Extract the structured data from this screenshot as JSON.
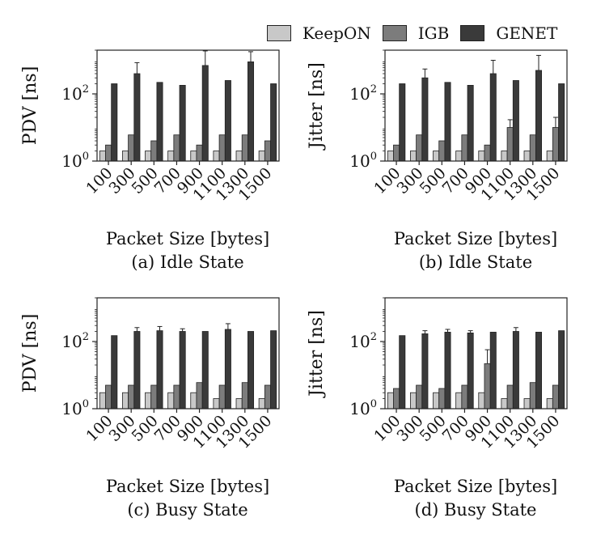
{
  "legend": [
    {
      "name": "KeepON",
      "color": "#c8c8c8"
    },
    {
      "name": "IGB",
      "color": "#7c7c7c"
    },
    {
      "name": "GENET",
      "color": "#3a3a3a"
    }
  ],
  "chart_data": [
    {
      "type": "bar",
      "title": "(a) Idle State",
      "xlabel": "Packet Size [bytes]",
      "ylabel": "PDV [ns]",
      "yscale": "log",
      "ylim": [
        1,
        2000
      ],
      "yticks": [
        "10^0",
        "10^2"
      ],
      "categories": [
        "100",
        "300",
        "500",
        "700",
        "900",
        "1100",
        "1300",
        "1500"
      ],
      "series": [
        {
          "name": "KeepON",
          "values": [
            2,
            2,
            2,
            2,
            2,
            2,
            2,
            2
          ],
          "errors": [
            0,
            0,
            0,
            0,
            0,
            0,
            0,
            0
          ]
        },
        {
          "name": "IGB",
          "values": [
            3,
            6,
            4,
            6,
            3,
            6,
            6,
            4
          ],
          "errors": [
            0,
            0,
            0,
            0,
            0,
            0,
            0,
            0
          ]
        },
        {
          "name": "GENET",
          "values": [
            200,
            400,
            220,
            180,
            700,
            250,
            900,
            200
          ],
          "errors": [
            0,
            450,
            0,
            0,
            1200,
            0,
            900,
            0
          ]
        }
      ]
    },
    {
      "type": "bar",
      "title": "(b) Idle State",
      "xlabel": "Packet Size [bytes]",
      "ylabel": "Jitter [ns]",
      "yscale": "log",
      "ylim": [
        1,
        2000
      ],
      "yticks": [
        "10^0",
        "10^2"
      ],
      "categories": [
        "100",
        "300",
        "500",
        "700",
        "900",
        "1100",
        "1300",
        "1500"
      ],
      "series": [
        {
          "name": "KeepON",
          "values": [
            2,
            2,
            2,
            2,
            2,
            2,
            2,
            2
          ],
          "errors": [
            0,
            0,
            0,
            0,
            0,
            0,
            0,
            0
          ]
        },
        {
          "name": "IGB",
          "values": [
            3,
            6,
            4,
            6,
            3,
            10,
            6,
            10
          ],
          "errors": [
            0,
            0,
            0,
            0,
            0,
            7,
            0,
            10
          ]
        },
        {
          "name": "GENET",
          "values": [
            200,
            300,
            220,
            180,
            400,
            250,
            500,
            200
          ],
          "errors": [
            0,
            250,
            0,
            0,
            600,
            0,
            900,
            0
          ]
        }
      ]
    },
    {
      "type": "bar",
      "title": "(c) Busy State",
      "xlabel": "Packet Size [bytes]",
      "ylabel": "PDV [ns]",
      "yscale": "log",
      "ylim": [
        1,
        2000
      ],
      "yticks": [
        "10^0",
        "10^2"
      ],
      "categories": [
        "100",
        "300",
        "500",
        "700",
        "900",
        "1100",
        "1300",
        "1500"
      ],
      "series": [
        {
          "name": "KeepON",
          "values": [
            3,
            3,
            3,
            3,
            3,
            2,
            2,
            2
          ],
          "errors": [
            0,
            0,
            0,
            0,
            0,
            0,
            0,
            0
          ]
        },
        {
          "name": "IGB",
          "values": [
            5,
            5,
            5,
            5,
            6,
            5,
            6,
            5
          ],
          "errors": [
            0,
            0,
            0,
            0,
            0,
            0,
            0,
            0
          ]
        },
        {
          "name": "GENET",
          "values": [
            150,
            200,
            210,
            200,
            200,
            230,
            200,
            210
          ],
          "errors": [
            0,
            60,
            70,
            40,
            0,
            110,
            0,
            0
          ]
        }
      ]
    },
    {
      "type": "bar",
      "title": "(d) Busy State",
      "xlabel": "Packet Size [bytes]",
      "ylabel": "Jitter [ns]",
      "yscale": "log",
      "ylim": [
        1,
        2000
      ],
      "yticks": [
        "10^0",
        "10^2"
      ],
      "categories": [
        "100",
        "300",
        "500",
        "700",
        "900",
        "1100",
        "1300",
        "1500"
      ],
      "series": [
        {
          "name": "KeepON",
          "values": [
            3,
            3,
            3,
            3,
            3,
            2,
            2,
            2
          ],
          "errors": [
            0,
            0,
            0,
            0,
            0,
            0,
            0,
            0
          ]
        },
        {
          "name": "IGB",
          "values": [
            4,
            5,
            4,
            5,
            22,
            5,
            6,
            5
          ],
          "errors": [
            0,
            0,
            0,
            0,
            35,
            0,
            0,
            0
          ]
        },
        {
          "name": "GENET",
          "values": [
            150,
            170,
            190,
            180,
            190,
            200,
            190,
            210
          ],
          "errors": [
            0,
            40,
            40,
            30,
            0,
            60,
            0,
            0
          ]
        }
      ]
    }
  ]
}
